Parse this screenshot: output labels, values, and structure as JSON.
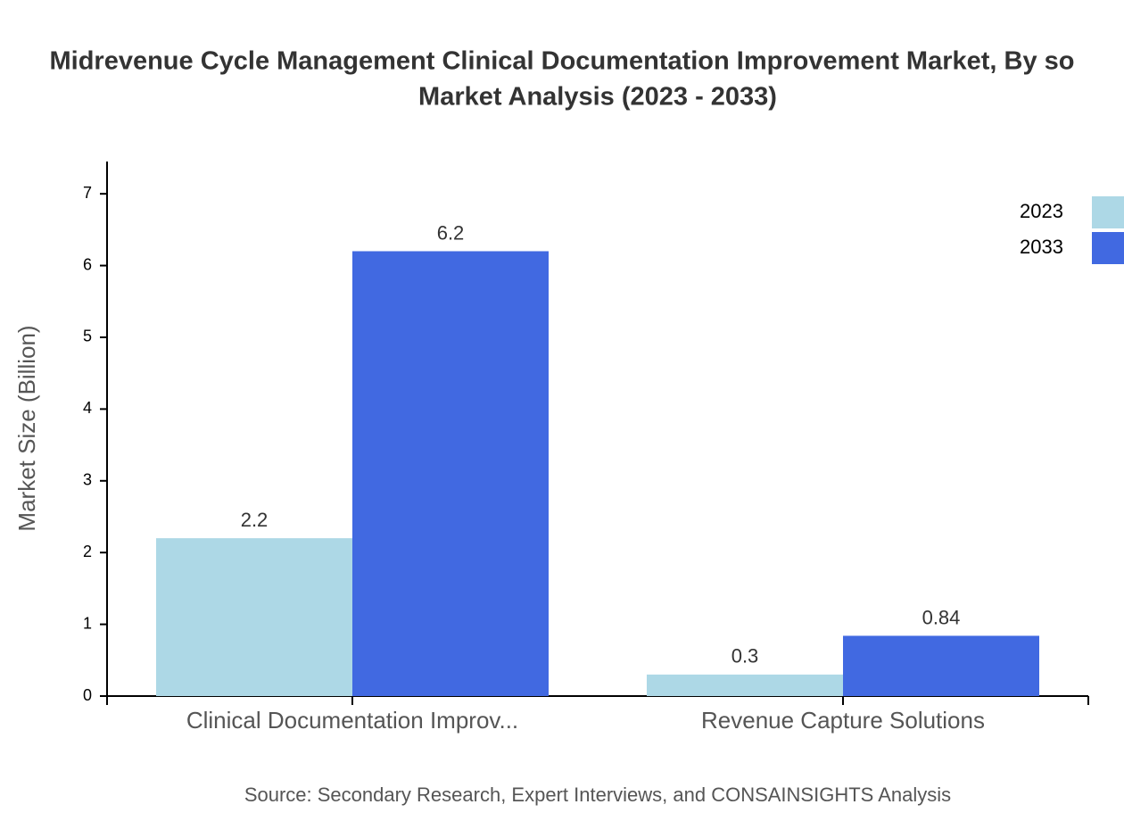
{
  "chart_data": {
    "type": "bar",
    "title": "Midrevenue Cycle Management Clinical Documentation Improvement Market, By so",
    "subtitle": "Market Analysis (2023 - 2033)",
    "y_label": "Market Size (Billion)",
    "source": "Source: Secondary Research, Expert Interviews, and CONSAINSIGHTS Analysis",
    "categories": [
      "Clinical Documentation Improv...",
      "Revenue Capture Solutions"
    ],
    "series": [
      {
        "name": "2023",
        "color": "#add8e6",
        "values": [
          2.2,
          0.3
        ]
      },
      {
        "name": "2033",
        "color": "#4169e1",
        "values": [
          6.2,
          0.84
        ]
      }
    ],
    "ylim": [
      0,
      7.45
    ],
    "yticks": [
      0,
      1,
      2,
      3,
      4,
      5,
      6,
      7
    ],
    "legend": "top-right"
  }
}
